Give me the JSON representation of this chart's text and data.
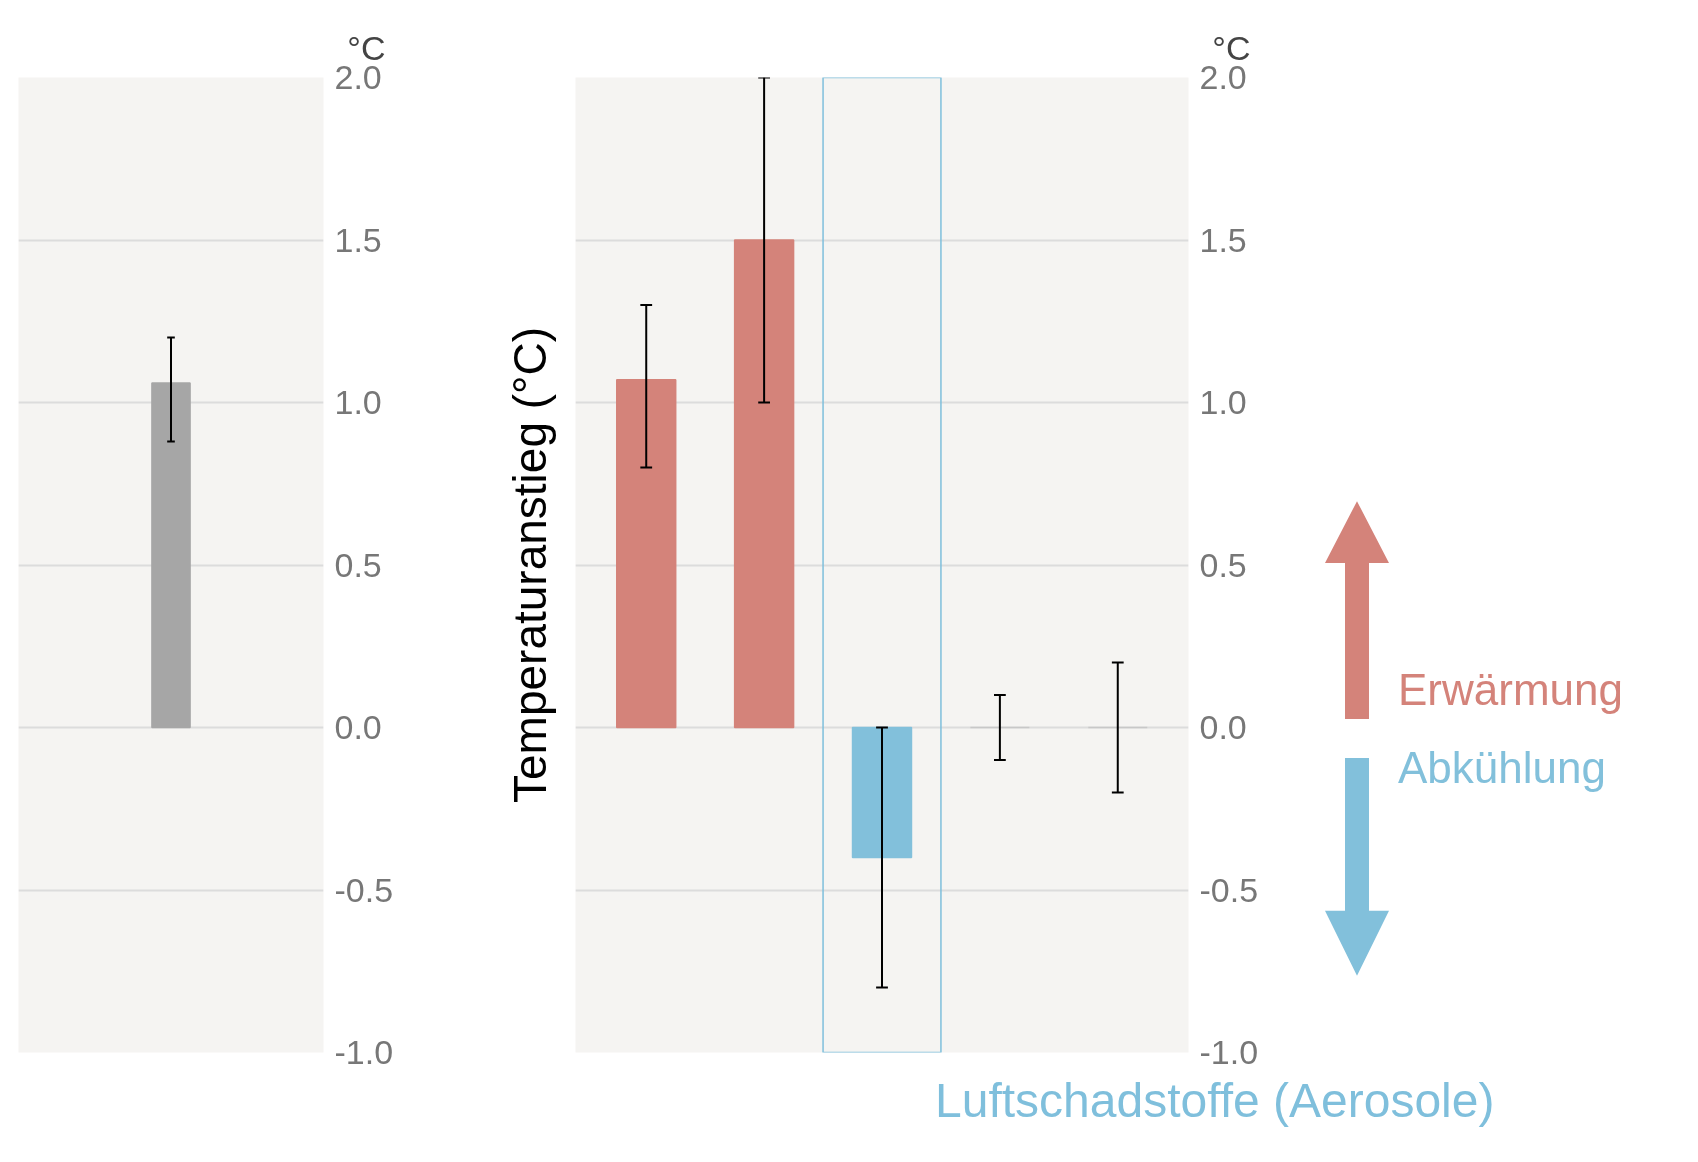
{
  "chart_data": [
    {
      "type": "bar",
      "categories": [
        null
      ],
      "values": [
        1.06
      ],
      "colors": [
        "#a6a6a6"
      ],
      "errors": [
        [
          0.88,
          1.2
        ]
      ],
      "ylim": [
        -1.0,
        2.0
      ],
      "yticks": [
        {
          "value": -1.0,
          "label": "-1.0"
        },
        {
          "value": -0.5,
          "label": "-0.5"
        },
        {
          "value": 0,
          "label": "0.0"
        },
        {
          "value": 0.5,
          "label": "0.5"
        },
        {
          "value": 1.0,
          "label": "1.0"
        },
        {
          "value": 1.5,
          "label": "1.5"
        },
        {
          "value": 2.0,
          "label": "2.0"
        }
      ],
      "ylabel": "°C",
      "grid": "y"
    },
    {
      "type": "bar",
      "categories": [
        null,
        null,
        null,
        null,
        null
      ],
      "values": [
        1.07,
        1.5,
        -0.4,
        0,
        0
      ],
      "colors": [
        "#d4837a",
        "#d4837a",
        "#82c0db",
        "#c8c8c8",
        "#c8c8c8"
      ],
      "errors": [
        [
          0.8,
          1.3
        ],
        [
          1.0,
          2.0
        ],
        [
          -0.8,
          0.0
        ],
        [
          -0.1,
          0.1
        ],
        [
          -0.2,
          0.2
        ]
      ],
      "ylim": [
        -1.0,
        2.0
      ],
      "yticks": [
        {
          "value": -1.0,
          "label": "-1.0"
        },
        {
          "value": -0.5,
          "label": "-0.5"
        },
        {
          "value": 0,
          "label": "0.0"
        },
        {
          "value": 0.5,
          "label": "0.5"
        },
        {
          "value": 1.0,
          "label": "1.0"
        },
        {
          "value": 1.5,
          "label": "1.5"
        },
        {
          "value": 2.0,
          "label": "2.0"
        }
      ],
      "ylabel": "Temperaturanstieg (°C)",
      "y2label": "°C",
      "grid": "y",
      "annotations": [
        "Erwärmung",
        "Abkühlung",
        "Luftschadstoffe (Aerosole)"
      ]
    }
  ]
}
